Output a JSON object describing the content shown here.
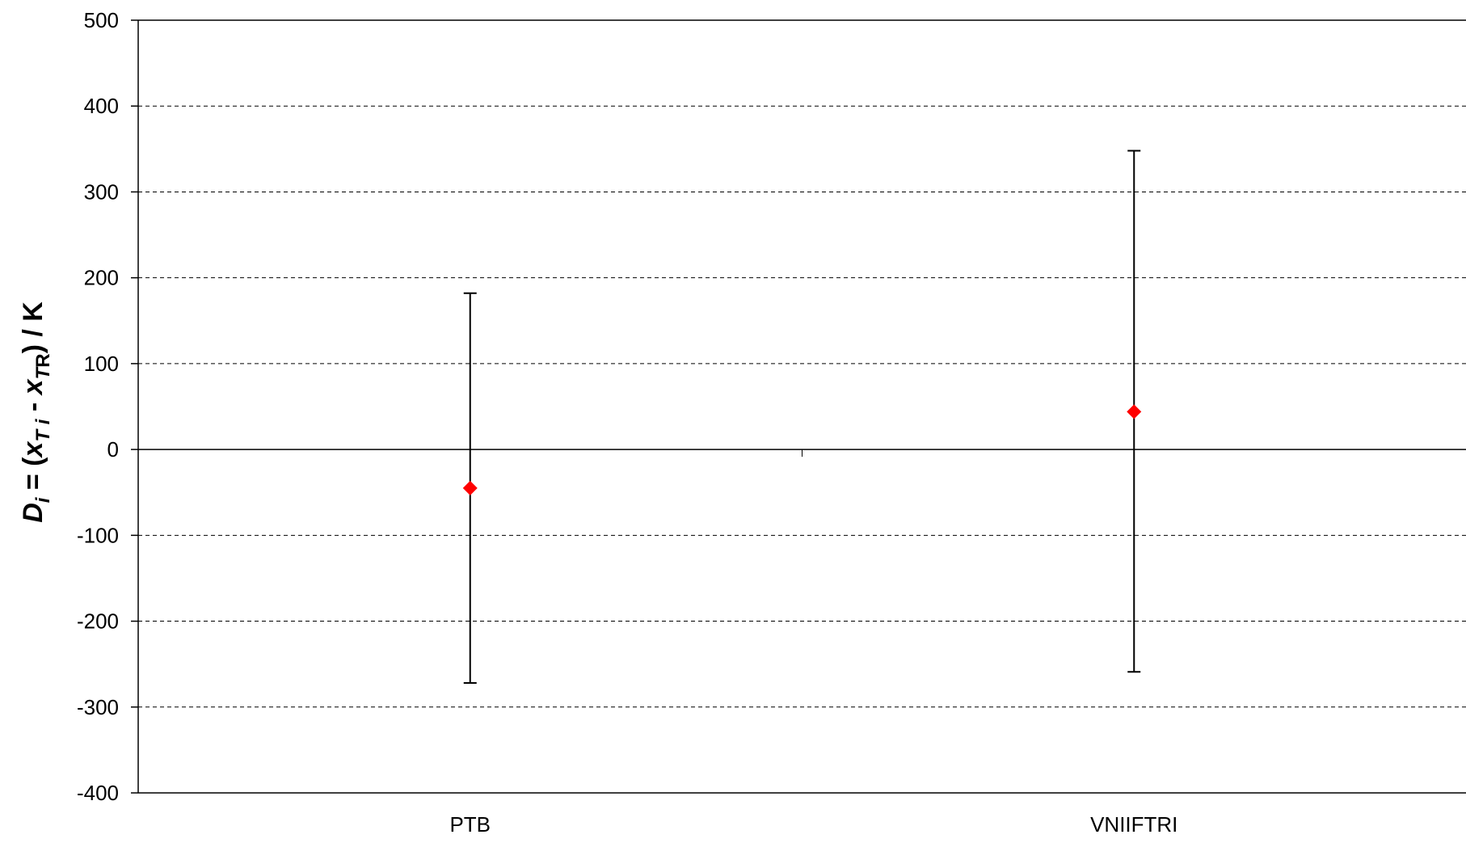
{
  "chart_data": {
    "type": "scatter",
    "title": "",
    "xlabel": "",
    "ylabel": {
      "prefix": "D",
      "prefix_sub": "i",
      "eq": " = (",
      "term1": "x",
      "term1_sub": "T i",
      "minus": " - ",
      "term2": "x",
      "term2_sub_italic": "T",
      "term2_sub": "R",
      "suffix": ") / K"
    },
    "categories": [
      "PTB",
      "VNIIFTRI"
    ],
    "series": [
      {
        "values": [
          -45,
          44
        ],
        "error_low": [
          -272,
          -259
        ],
        "error_high": [
          182,
          348
        ],
        "marker": "diamond",
        "color": "#ff0000"
      }
    ],
    "ylim": [
      -400,
      500
    ],
    "yticks": [
      500,
      400,
      300,
      200,
      100,
      0,
      -100,
      -200,
      -300,
      -400
    ],
    "grid": "horizontal-dashed",
    "legend": "none",
    "colors": {
      "marker": "#ff0000",
      "errorbar": "#000000",
      "axis": "#000000",
      "grid": "#000000"
    }
  }
}
